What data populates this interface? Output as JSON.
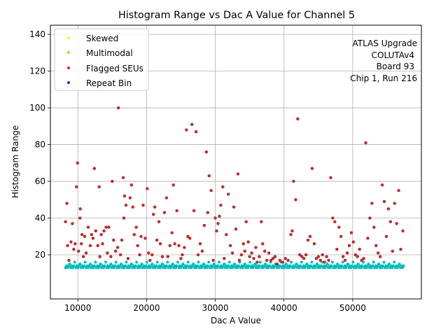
{
  "chart_data": {
    "type": "scatter",
    "title": "Histogram Range vs Dac A Value for Channel 5",
    "xlabel": "Dac A Value",
    "ylabel": "Histogram Range",
    "xlim": [
      6000,
      60000
    ],
    "ylim": [
      -4,
      145
    ],
    "x_ticks": [
      10000,
      20000,
      30000,
      40000,
      50000
    ],
    "x_tick_labels": [
      "10000",
      "20000",
      "30000",
      "40000",
      "50000"
    ],
    "y_ticks": [
      20,
      40,
      60,
      80,
      100,
      120,
      140
    ],
    "y_tick_labels": [
      "20",
      "40",
      "60",
      "80",
      "100",
      "120",
      "140"
    ],
    "grid": true,
    "legend_position": "top-left",
    "annotation": [
      "ATLAS Upgrade",
      "COLUTAv4",
      "Board 93",
      "Chip 1, Run 216"
    ],
    "legend": [
      {
        "label": "Skewed",
        "color": "#ffff00"
      },
      {
        "label": "Multimodal",
        "color": "#7fff00"
      },
      {
        "label": "Flagged SEUs",
        "color": "#cc2a2a"
      },
      {
        "label": "Repeat Bin",
        "color": "#7b00b4"
      }
    ],
    "series": [
      {
        "role": "baseline",
        "color": "#00bdbd",
        "x_start": 8200,
        "x_end": 57400,
        "x_step": 150,
        "y_levels": [
          13,
          14,
          13,
          14,
          15,
          13,
          14,
          13,
          14,
          16
        ]
      },
      {
        "name": "Flagged SEUs",
        "color": "#cc2a2a",
        "points": [
          [
            8200,
            38
          ],
          [
            8400,
            48
          ],
          [
            8500,
            25
          ],
          [
            8700,
            17
          ],
          [
            9000,
            27
          ],
          [
            9200,
            37
          ],
          [
            9400,
            23
          ],
          [
            9600,
            26
          ],
          [
            9800,
            57
          ],
          [
            9950,
            70
          ],
          [
            10100,
            22
          ],
          [
            10300,
            40
          ],
          [
            10350,
            45
          ],
          [
            10500,
            26
          ],
          [
            10600,
            31
          ],
          [
            10800,
            19
          ],
          [
            11000,
            30
          ],
          [
            11200,
            21
          ],
          [
            11500,
            35
          ],
          [
            11800,
            25
          ],
          [
            12000,
            31
          ],
          [
            12200,
            29
          ],
          [
            12400,
            67
          ],
          [
            12600,
            33
          ],
          [
            12900,
            25
          ],
          [
            13100,
            57
          ],
          [
            13200,
            19
          ],
          [
            13400,
            31
          ],
          [
            13600,
            26
          ],
          [
            13800,
            33
          ],
          [
            14100,
            35
          ],
          [
            14300,
            21
          ],
          [
            14500,
            35
          ],
          [
            14800,
            19
          ],
          [
            15000,
            60
          ],
          [
            15200,
            28
          ],
          [
            15500,
            22
          ],
          [
            15800,
            24
          ],
          [
            15900,
            100
          ],
          [
            16200,
            20
          ],
          [
            16400,
            28
          ],
          [
            16600,
            62
          ],
          [
            16700,
            40
          ],
          [
            16800,
            52
          ],
          [
            17000,
            47
          ],
          [
            17300,
            18
          ],
          [
            17600,
            51
          ],
          [
            17800,
            58
          ],
          [
            18000,
            46
          ],
          [
            18200,
            31
          ],
          [
            18500,
            35
          ],
          [
            18700,
            25
          ],
          [
            19000,
            20
          ],
          [
            19200,
            30
          ],
          [
            19500,
            47
          ],
          [
            19800,
            29
          ],
          [
            20100,
            56
          ],
          [
            20300,
            21
          ],
          [
            20500,
            17
          ],
          [
            20800,
            20
          ],
          [
            21000,
            42
          ],
          [
            21200,
            46
          ],
          [
            21500,
            28
          ],
          [
            21800,
            38
          ],
          [
            22000,
            26
          ],
          [
            22300,
            19
          ],
          [
            22600,
            43
          ],
          [
            22900,
            51
          ],
          [
            23100,
            19
          ],
          [
            23400,
            25
          ],
          [
            23700,
            32
          ],
          [
            23900,
            58
          ],
          [
            24100,
            26
          ],
          [
            24400,
            44
          ],
          [
            24700,
            25
          ],
          [
            25000,
            18
          ],
          [
            25200,
            20
          ],
          [
            25500,
            24
          ],
          [
            25800,
            88
          ],
          [
            26000,
            30
          ],
          [
            26300,
            29
          ],
          [
            26600,
            91
          ],
          [
            26900,
            44
          ],
          [
            27200,
            87
          ],
          [
            27500,
            20
          ],
          [
            27800,
            26
          ],
          [
            28100,
            22
          ],
          [
            28400,
            36
          ],
          [
            28700,
            76
          ],
          [
            28900,
            43
          ],
          [
            29100,
            63
          ],
          [
            29400,
            55
          ],
          [
            29700,
            17
          ],
          [
            30000,
            40
          ],
          [
            30200,
            33
          ],
          [
            30400,
            37
          ],
          [
            30600,
            41
          ],
          [
            30800,
            47
          ],
          [
            31100,
            57
          ],
          [
            31300,
            18
          ],
          [
            31600,
            31
          ],
          [
            31900,
            53
          ],
          [
            32200,
            25
          ],
          [
            32500,
            21
          ],
          [
            32700,
            46
          ],
          [
            33000,
            34
          ],
          [
            33300,
            64
          ],
          [
            33500,
            17
          ],
          [
            33800,
            20
          ],
          [
            34100,
            26
          ],
          [
            34300,
            22
          ],
          [
            34500,
            38
          ],
          [
            34800,
            27
          ],
          [
            35000,
            19
          ],
          [
            35300,
            21
          ],
          [
            35600,
            18
          ],
          [
            35900,
            24
          ],
          [
            36100,
            16
          ],
          [
            36400,
            19
          ],
          [
            36700,
            38
          ],
          [
            36900,
            26
          ],
          [
            37200,
            22
          ],
          [
            37500,
            17
          ],
          [
            37800,
            21
          ],
          [
            38100,
            17
          ],
          [
            38400,
            18
          ],
          [
            38700,
            19
          ],
          [
            39000,
            15
          ],
          [
            39400,
            17
          ],
          [
            39800,
            16
          ],
          [
            40200,
            18
          ],
          [
            40600,
            17
          ],
          [
            41000,
            31
          ],
          [
            41200,
            33
          ],
          [
            41400,
            60
          ],
          [
            41700,
            50
          ],
          [
            42000,
            94
          ],
          [
            42300,
            20
          ],
          [
            42600,
            19
          ],
          [
            42900,
            18
          ],
          [
            43200,
            20
          ],
          [
            43500,
            28
          ],
          [
            43800,
            30
          ],
          [
            44100,
            67
          ],
          [
            44400,
            26
          ],
          [
            44700,
            18
          ],
          [
            45000,
            19
          ],
          [
            45300,
            17
          ],
          [
            45600,
            20
          ],
          [
            45900,
            16
          ],
          [
            46200,
            19
          ],
          [
            46500,
            17
          ],
          [
            46800,
            62
          ],
          [
            47100,
            40
          ],
          [
            47400,
            38
          ],
          [
            47700,
            23
          ],
          [
            48000,
            35
          ],
          [
            48300,
            30
          ],
          [
            48600,
            19
          ],
          [
            48900,
            17
          ],
          [
            49200,
            21
          ],
          [
            49500,
            25
          ],
          [
            49800,
            32
          ],
          [
            50100,
            27
          ],
          [
            50400,
            20
          ],
          [
            50700,
            19
          ],
          [
            51000,
            23
          ],
          [
            51300,
            17
          ],
          [
            51600,
            18
          ],
          [
            51900,
            81
          ],
          [
            52200,
            29
          ],
          [
            52500,
            40
          ],
          [
            52800,
            48
          ],
          [
            53100,
            35
          ],
          [
            53400,
            25
          ],
          [
            53700,
            21
          ],
          [
            54000,
            19
          ],
          [
            54300,
            58
          ],
          [
            54600,
            49
          ],
          [
            54900,
            30
          ],
          [
            55200,
            45
          ],
          [
            55500,
            38
          ],
          [
            55800,
            22
          ],
          [
            56100,
            48
          ],
          [
            56400,
            37
          ],
          [
            56700,
            55
          ],
          [
            57000,
            23
          ],
          [
            57300,
            33
          ]
        ]
      }
    ]
  }
}
